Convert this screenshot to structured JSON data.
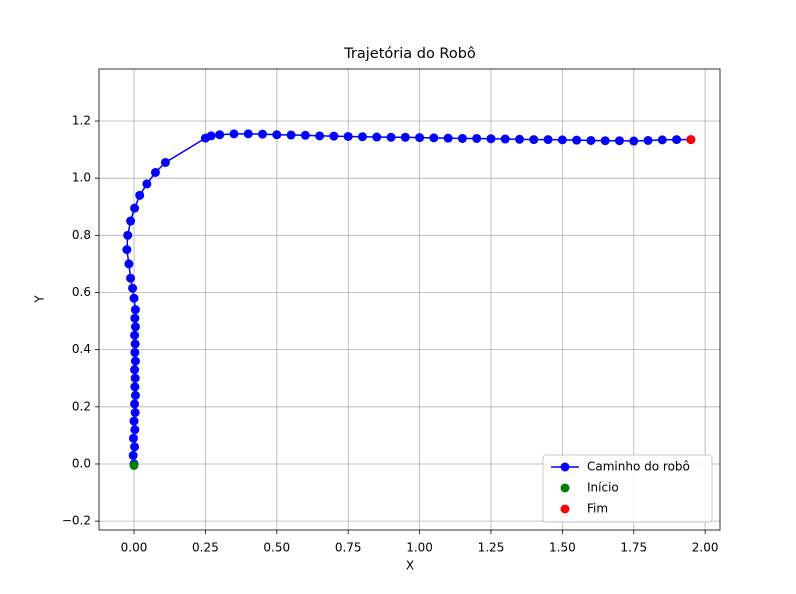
{
  "chart_data": {
    "type": "line",
    "title": "Trajetória do Robô",
    "x_label": "X",
    "y_label": "Y",
    "xlim": [
      -0.1226,
      2.052
    ],
    "ylim": [
      -0.231,
      1.382
    ],
    "xticks": [
      {
        "value": 0,
        "label": "0.00"
      },
      {
        "value": 0.25,
        "label": "0.25"
      },
      {
        "value": 0.5,
        "label": "0.50"
      },
      {
        "value": 0.75,
        "label": "0.75"
      },
      {
        "value": 1,
        "label": "1.00"
      },
      {
        "value": 1.25,
        "label": "1.25"
      },
      {
        "value": 1.5,
        "label": "1.50"
      },
      {
        "value": 1.75,
        "label": "1.75"
      },
      {
        "value": 2,
        "label": "2.00"
      }
    ],
    "yticks": [
      {
        "value": -0.2,
        "label": "−0.2"
      },
      {
        "value": 0,
        "label": "0.0"
      },
      {
        "value": 0.2,
        "label": "0.2"
      },
      {
        "value": 0.4,
        "label": "0.4"
      },
      {
        "value": 0.6,
        "label": "0.6"
      },
      {
        "value": 0.8,
        "label": "0.8"
      },
      {
        "value": 1,
        "label": "1.0"
      },
      {
        "value": 1.2,
        "label": "1.2"
      }
    ],
    "grid": true,
    "legend": "lower-right",
    "series": [
      {
        "name": "Caminho do robô",
        "color": "#0000ff",
        "style": "line-marker",
        "x": [
          0,
          -0.003,
          0.002,
          -0.002,
          0.003,
          0,
          0.004,
          0.002,
          0.005,
          0.003,
          0.004,
          0.002,
          0.005,
          0.003,
          0.004,
          0.002,
          0.005,
          0.003,
          0.005,
          0,
          -0.005,
          -0.012,
          -0.018,
          -0.025,
          -0.022,
          -0.012,
          0.002,
          0.02,
          0.045,
          0.075,
          0.11,
          0.25,
          0.27,
          0.3,
          0.35,
          0.4,
          0.45,
          0.5,
          0.55,
          0.6,
          0.65,
          0.7,
          0.75,
          0.8,
          0.85,
          0.9,
          0.95,
          1,
          1.05,
          1.1,
          1.15,
          1.2,
          1.25,
          1.3,
          1.35,
          1.4,
          1.45,
          1.5,
          1.55,
          1.6,
          1.65,
          1.7,
          1.75,
          1.8,
          1.85,
          1.9,
          1.95
        ],
        "y": [
          0,
          0.03,
          0.06,
          0.09,
          0.12,
          0.15,
          0.18,
          0.21,
          0.24,
          0.27,
          0.3,
          0.33,
          0.36,
          0.39,
          0.42,
          0.45,
          0.48,
          0.51,
          0.54,
          0.58,
          0.615,
          0.65,
          0.7,
          0.75,
          0.8,
          0.85,
          0.895,
          0.94,
          0.98,
          1.02,
          1.055,
          1.14,
          1.148,
          1.152,
          1.155,
          1.155,
          1.154,
          1.152,
          1.151,
          1.15,
          1.148,
          1.147,
          1.146,
          1.145,
          1.144,
          1.143,
          1.143,
          1.142,
          1.141,
          1.14,
          1.139,
          1.139,
          1.138,
          1.137,
          1.136,
          1.135,
          1.135,
          1.134,
          1.133,
          1.132,
          1.131,
          1.131,
          1.13,
          1.132,
          1.134,
          1.135,
          1.135
        ]
      },
      {
        "name": "Início",
        "color": "#008000",
        "style": "marker",
        "x": [
          0
        ],
        "y": [
          -0.005
        ]
      },
      {
        "name": "Fim",
        "color": "#ff0000",
        "style": "marker",
        "x": [
          1.95
        ],
        "y": [
          1.135
        ]
      }
    ]
  }
}
